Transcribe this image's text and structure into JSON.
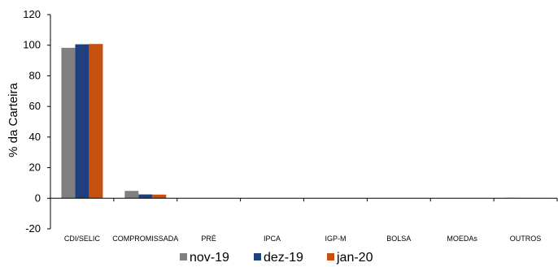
{
  "chart_data": {
    "type": "bar",
    "ylabel": "% da Carteira",
    "ylim": [
      -20,
      120
    ],
    "yticks": [
      -20,
      0,
      20,
      40,
      60,
      80,
      100,
      120
    ],
    "categories": [
      "CDI/SELIC",
      "COMPROMISSADA",
      "PRÉ",
      "IPCA",
      "IGP-M",
      "BOLSA",
      "MOEDAs",
      "OUTROS"
    ],
    "series": [
      {
        "name": "nov-19",
        "color": "#808080",
        "values": [
          98.3,
          4.8,
          0,
          0,
          0,
          0,
          0,
          0.3
        ]
      },
      {
        "name": "dez-19",
        "color": "#1f3f7f",
        "values": [
          100.6,
          2.5,
          0,
          0,
          0,
          0,
          0,
          0.2
        ]
      },
      {
        "name": "jan-20",
        "color": "#c8500f",
        "values": [
          100.8,
          2.4,
          0,
          0,
          0,
          0,
          0,
          0.2
        ]
      }
    ],
    "legend_position": "bottom",
    "grid": false
  }
}
